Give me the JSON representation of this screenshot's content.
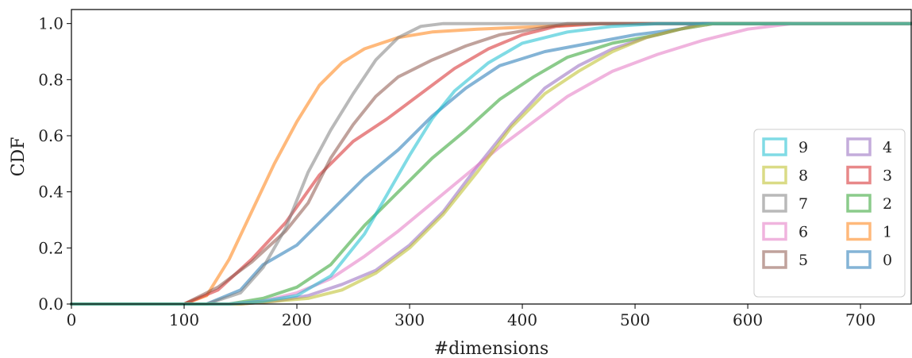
{
  "chart_data": {
    "type": "line",
    "title": "",
    "xlabel": "#dimensions",
    "ylabel": "CDF",
    "xlim": [
      0,
      745
    ],
    "ylim": [
      0,
      1.05
    ],
    "xticks": [
      0,
      100,
      200,
      300,
      400,
      500,
      600,
      700
    ],
    "yticks": [
      0.0,
      0.2,
      0.4,
      0.6,
      0.8,
      1.0
    ],
    "xtick_labels": [
      "0",
      "100",
      "200",
      "300",
      "400",
      "500",
      "600",
      "700"
    ],
    "ytick_labels": [
      "0.0",
      "0.2",
      "0.4",
      "0.6",
      "0.8",
      "1.0"
    ],
    "grid": false,
    "legend_position": "lower-right",
    "series": [
      {
        "name": "0",
        "color": "#1f77b4",
        "x": [
          0,
          120,
          150,
          170,
          200,
          230,
          260,
          290,
          320,
          350,
          380,
          420,
          460,
          500,
          540,
          570,
          745
        ],
        "y": [
          0,
          0,
          0.05,
          0.14,
          0.21,
          0.33,
          0.45,
          0.55,
          0.67,
          0.77,
          0.85,
          0.9,
          0.93,
          0.96,
          0.98,
          1.0,
          1.0
        ]
      },
      {
        "name": "1",
        "color": "#ff7f0e",
        "x": [
          0,
          100,
          120,
          140,
          160,
          180,
          200,
          220,
          240,
          260,
          290,
          320,
          360,
          420,
          460,
          745
        ],
        "y": [
          0,
          0,
          0.03,
          0.16,
          0.33,
          0.5,
          0.65,
          0.78,
          0.86,
          0.91,
          0.95,
          0.97,
          0.98,
          0.99,
          1.0,
          1.0
        ]
      },
      {
        "name": "2",
        "color": "#2ca02c",
        "x": [
          0,
          140,
          170,
          200,
          230,
          260,
          290,
          320,
          350,
          380,
          410,
          440,
          480,
          520,
          560,
          745
        ],
        "y": [
          0,
          0,
          0.02,
          0.06,
          0.14,
          0.28,
          0.4,
          0.52,
          0.62,
          0.73,
          0.81,
          0.88,
          0.93,
          0.96,
          1.0,
          1.0
        ]
      },
      {
        "name": "3",
        "color": "#d62728",
        "x": [
          0,
          100,
          130,
          160,
          190,
          220,
          250,
          280,
          310,
          340,
          370,
          400,
          430,
          470,
          745
        ],
        "y": [
          0,
          0,
          0.05,
          0.16,
          0.29,
          0.46,
          0.58,
          0.66,
          0.75,
          0.84,
          0.91,
          0.96,
          0.99,
          1.0,
          1.0
        ]
      },
      {
        "name": "4",
        "color": "#9467bd",
        "x": [
          0,
          150,
          180,
          210,
          240,
          270,
          300,
          330,
          360,
          390,
          420,
          450,
          480,
          510,
          540,
          560,
          745
        ],
        "y": [
          0,
          0,
          0.01,
          0.03,
          0.07,
          0.12,
          0.21,
          0.33,
          0.49,
          0.64,
          0.77,
          0.85,
          0.91,
          0.95,
          0.98,
          1.0,
          1.0
        ]
      },
      {
        "name": "5",
        "color": "#8c564b",
        "x": [
          0,
          100,
          130,
          160,
          190,
          210,
          230,
          250,
          270,
          290,
          320,
          350,
          380,
          410,
          440,
          745
        ],
        "y": [
          0,
          0,
          0.06,
          0.15,
          0.26,
          0.36,
          0.52,
          0.64,
          0.74,
          0.81,
          0.87,
          0.92,
          0.96,
          0.98,
          1.0,
          1.0
        ]
      },
      {
        "name": "6",
        "color": "#e377c2",
        "x": [
          0,
          140,
          170,
          200,
          230,
          260,
          290,
          320,
          350,
          380,
          410,
          440,
          480,
          520,
          560,
          600,
          640,
          745
        ],
        "y": [
          0,
          0,
          0.01,
          0.04,
          0.09,
          0.17,
          0.26,
          0.36,
          0.46,
          0.56,
          0.65,
          0.74,
          0.83,
          0.89,
          0.94,
          0.98,
          1.0,
          1.0
        ]
      },
      {
        "name": "7",
        "color": "#7f7f7f",
        "x": [
          0,
          120,
          150,
          170,
          190,
          210,
          230,
          250,
          270,
          290,
          310,
          330,
          745
        ],
        "y": [
          0,
          0,
          0.04,
          0.13,
          0.27,
          0.47,
          0.62,
          0.75,
          0.87,
          0.95,
          0.99,
          1.0,
          1.0
        ]
      },
      {
        "name": "8",
        "color": "#bcbd22",
        "x": [
          0,
          150,
          180,
          210,
          240,
          270,
          300,
          330,
          360,
          390,
          420,
          450,
          480,
          510,
          540,
          570,
          745
        ],
        "y": [
          0,
          0,
          0.01,
          0.02,
          0.05,
          0.11,
          0.2,
          0.32,
          0.47,
          0.63,
          0.75,
          0.83,
          0.9,
          0.95,
          0.98,
          1.0,
          1.0
        ]
      },
      {
        "name": "9",
        "color": "#17becf",
        "x": [
          0,
          140,
          170,
          200,
          230,
          260,
          280,
          300,
          320,
          340,
          370,
          400,
          440,
          480,
          520,
          745
        ],
        "y": [
          0,
          0,
          0.01,
          0.03,
          0.1,
          0.25,
          0.39,
          0.53,
          0.66,
          0.76,
          0.86,
          0.93,
          0.97,
          0.99,
          1.0,
          1.0
        ]
      }
    ],
    "legend": [
      {
        "label": "9",
        "color": "#17becf",
        "col": 0,
        "row": 0
      },
      {
        "label": "8",
        "color": "#bcbd22",
        "col": 0,
        "row": 1
      },
      {
        "label": "7",
        "color": "#7f7f7f",
        "col": 0,
        "row": 2
      },
      {
        "label": "6",
        "color": "#e377c2",
        "col": 0,
        "row": 3
      },
      {
        "label": "5",
        "color": "#8c564b",
        "col": 0,
        "row": 4
      },
      {
        "label": "4",
        "color": "#9467bd",
        "col": 1,
        "row": 0
      },
      {
        "label": "3",
        "color": "#d62728",
        "col": 1,
        "row": 1
      },
      {
        "label": "2",
        "color": "#2ca02c",
        "col": 1,
        "row": 2
      },
      {
        "label": "1",
        "color": "#ff7f0e",
        "col": 1,
        "row": 3
      },
      {
        "label": "0",
        "color": "#1f77b4",
        "col": 1,
        "row": 4
      }
    ]
  }
}
